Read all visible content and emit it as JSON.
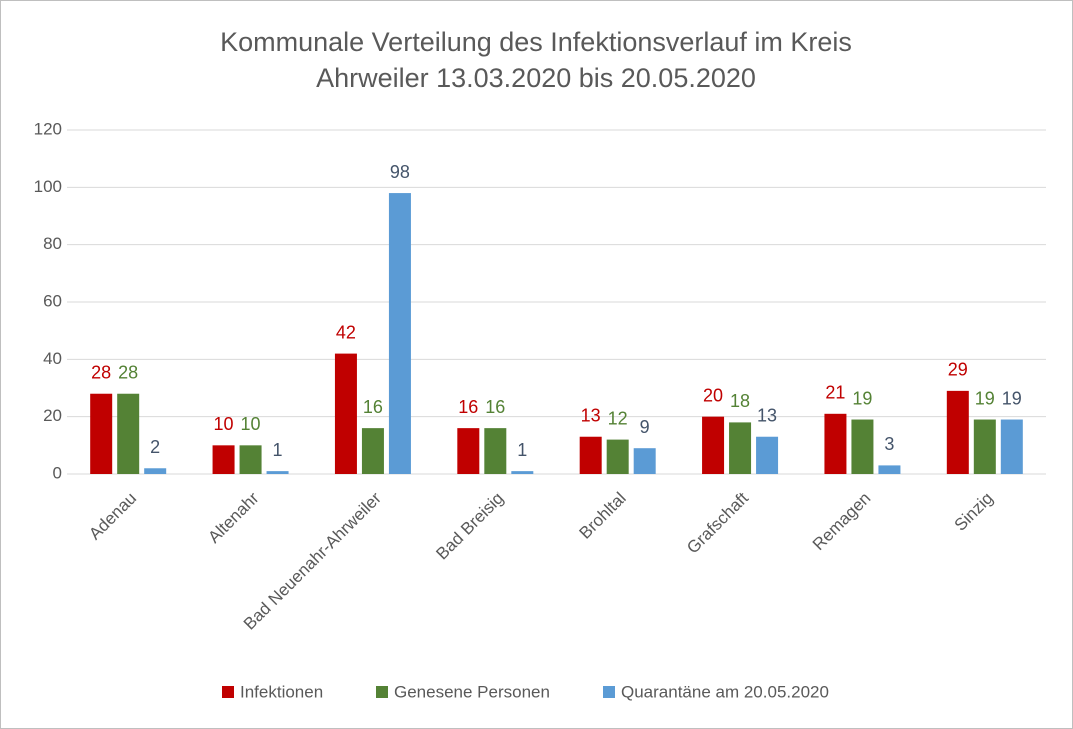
{
  "chart_data": {
    "type": "bar",
    "title": [
      "Kommunale Verteilung des Infektionsverlauf im Kreis",
      "Ahrweiler 13.03.2020 bis 20.05.2020"
    ],
    "categories": [
      "Adenau",
      "Altenahr",
      "Bad Neuenahr-Ahrweiler",
      "Bad Breisig",
      "Brohltal",
      "Grafschaft",
      "Remagen",
      "Sinzig"
    ],
    "series": [
      {
        "name": "Infektionen",
        "color": "#c00000",
        "label_color": "#c00000",
        "values": [
          28,
          10,
          42,
          16,
          13,
          20,
          21,
          29
        ]
      },
      {
        "name": "Genesene Personen",
        "color": "#548235",
        "label_color": "#548235",
        "values": [
          28,
          10,
          16,
          16,
          12,
          18,
          19,
          19
        ]
      },
      {
        "name": "Quarantäne am 20.05.2020",
        "color": "#5b9bd5",
        "label_color": "#44546a",
        "values": [
          2,
          1,
          98,
          1,
          9,
          13,
          3,
          19
        ]
      }
    ],
    "ylim": [
      0,
      120
    ],
    "yticks": [
      0,
      20,
      40,
      60,
      80,
      100,
      120
    ],
    "grid": true,
    "legend": "bottom"
  }
}
